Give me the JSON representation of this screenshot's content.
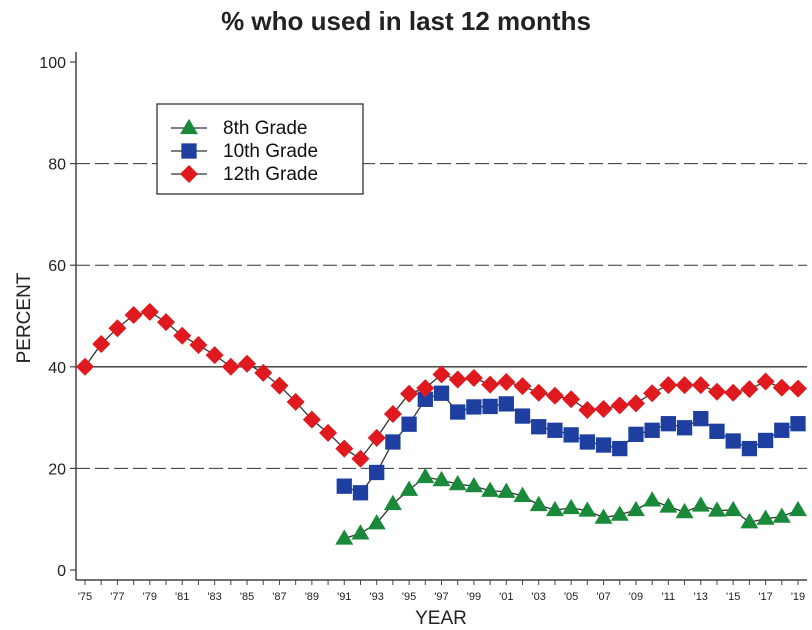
{
  "chart_data": {
    "type": "line",
    "title": "% who used in last 12 months",
    "xlabel": "YEAR",
    "ylabel": "PERCENT",
    "ylim": [
      0,
      100
    ],
    "yticks": [
      0,
      20,
      40,
      60,
      80,
      100
    ],
    "xlim": [
      1975,
      2019
    ],
    "xtick_labels": [
      "'75",
      "'77",
      "'79",
      "'81",
      "'83",
      "'85",
      "'87",
      "'89",
      "'91",
      "'93",
      "'95",
      "'97",
      "'99",
      "'01",
      "'03",
      "'05",
      "'07",
      "'09",
      "'11",
      "'13",
      "'15",
      "'17",
      "'19"
    ],
    "grid": "horizontal dashed at 20, 60, 80; solid at 40",
    "legend": "top-left",
    "series": [
      {
        "name": "8th Grade",
        "color": "#1a8a3a",
        "marker": "triangle",
        "x": [
          1991,
          1992,
          1993,
          1994,
          1995,
          1996,
          1997,
          1998,
          1999,
          2000,
          2001,
          2002,
          2003,
          2004,
          2005,
          2006,
          2007,
          2008,
          2009,
          2010,
          2011,
          2012,
          2013,
          2014,
          2015,
          2016,
          2017,
          2018,
          2019
        ],
        "values": [
          6.2,
          7.2,
          9.2,
          13.0,
          15.8,
          18.3,
          17.7,
          16.9,
          16.5,
          15.6,
          15.4,
          14.6,
          12.8,
          11.8,
          12.2,
          11.7,
          10.3,
          10.9,
          11.8,
          13.7,
          12.5,
          11.4,
          12.7,
          11.7,
          11.8,
          9.4,
          10.1,
          10.5,
          11.8
        ]
      },
      {
        "name": "10th Grade",
        "color": "#1f3fa0",
        "marker": "square",
        "x": [
          1991,
          1992,
          1993,
          1994,
          1995,
          1996,
          1997,
          1998,
          1999,
          2000,
          2001,
          2002,
          2003,
          2004,
          2005,
          2006,
          2007,
          2008,
          2009,
          2010,
          2011,
          2012,
          2013,
          2014,
          2015,
          2016,
          2017,
          2018,
          2019
        ],
        "values": [
          16.5,
          15.2,
          19.2,
          25.2,
          28.7,
          33.6,
          34.8,
          31.1,
          32.1,
          32.2,
          32.7,
          30.3,
          28.2,
          27.5,
          26.6,
          25.2,
          24.6,
          23.9,
          26.7,
          27.5,
          28.8,
          28.0,
          29.8,
          27.3,
          25.4,
          23.9,
          25.5,
          27.5,
          28.8
        ]
      },
      {
        "name": "12th Grade",
        "color": "#e0191f",
        "marker": "diamond",
        "x": [
          1975,
          1976,
          1977,
          1978,
          1979,
          1980,
          1981,
          1982,
          1983,
          1984,
          1985,
          1986,
          1987,
          1988,
          1989,
          1990,
          1991,
          1992,
          1993,
          1994,
          1995,
          1996,
          1997,
          1998,
          1999,
          2000,
          2001,
          2002,
          2003,
          2004,
          2005,
          2006,
          2007,
          2008,
          2009,
          2010,
          2011,
          2012,
          2013,
          2014,
          2015,
          2016,
          2017,
          2018,
          2019
        ],
        "values": [
          40.0,
          44.5,
          47.6,
          50.2,
          50.8,
          48.8,
          46.1,
          44.3,
          42.3,
          40.0,
          40.6,
          38.8,
          36.3,
          33.1,
          29.6,
          27.0,
          23.9,
          21.9,
          26.0,
          30.7,
          34.7,
          35.8,
          38.5,
          37.5,
          37.8,
          36.5,
          37.0,
          36.2,
          34.9,
          34.3,
          33.6,
          31.5,
          31.7,
          32.4,
          32.8,
          34.8,
          36.4,
          36.4,
          36.4,
          35.1,
          34.9,
          35.6,
          37.1,
          35.9,
          35.7
        ]
      }
    ]
  }
}
